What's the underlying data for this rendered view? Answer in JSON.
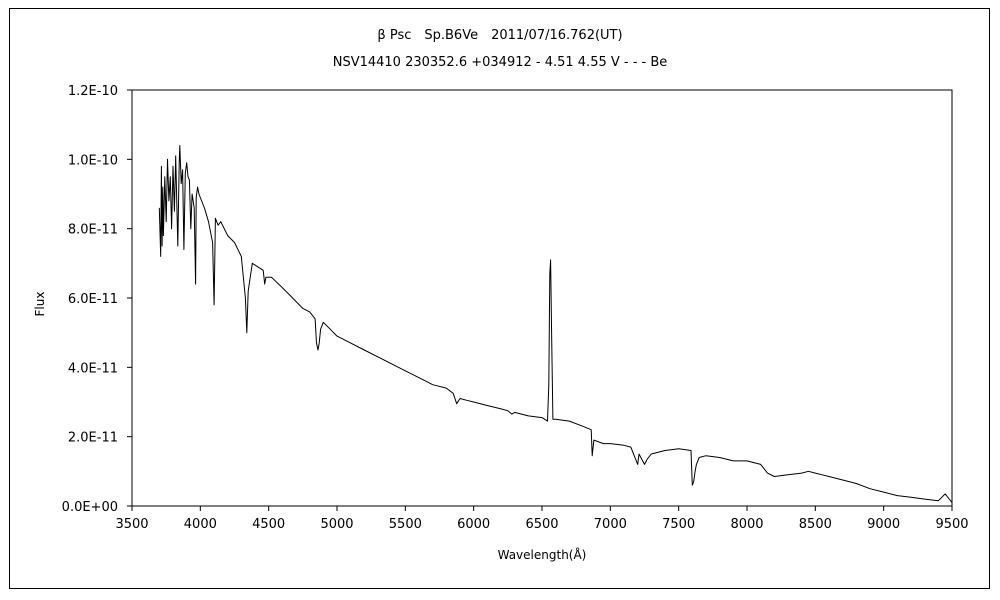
{
  "chart_data": {
    "type": "line",
    "title": "β Psc　Sp.B6Ve　2011/07/16.762(UT)",
    "subtitle": "NSV14410 230352.6 +034912 - 4.51 4.55 V - - - Be",
    "xlabel": "Wavelength(Å)",
    "ylabel": "Flux",
    "xlim": [
      3500,
      9500
    ],
    "ylim": [
      0,
      1.2e-10
    ],
    "xticks": [
      3500,
      4000,
      4500,
      5000,
      5500,
      6000,
      6500,
      7000,
      7500,
      8000,
      8500,
      9000,
      9500
    ],
    "yticks": [
      0,
      2e-11,
      4e-11,
      6e-11,
      8e-11,
      1e-10,
      1.2e-10
    ],
    "ytick_labels": [
      "0.0E+00",
      "2.0E-11",
      "4.0E-11",
      "6.0E-11",
      "8.0E-11",
      "1.0E-10",
      "1.2E-10"
    ],
    "grid": false,
    "legend": "none",
    "series": [
      {
        "color": "#000000",
        "x": [
          3700,
          3710,
          3715,
          3720,
          3725,
          3730,
          3740,
          3750,
          3760,
          3770,
          3780,
          3790,
          3800,
          3810,
          3820,
          3835,
          3845,
          3850,
          3860,
          3870,
          3880,
          3890,
          3900,
          3910,
          3920,
          3930,
          3940,
          3955,
          3965,
          3970,
          3980,
          3990,
          4000,
          4030,
          4060,
          4090,
          4101,
          4110,
          4130,
          4150,
          4200,
          4250,
          4300,
          4330,
          4340,
          4350,
          4380,
          4420,
          4460,
          4471,
          4480,
          4520,
          4600,
          4650,
          4700,
          4750,
          4800,
          4840,
          4850,
          4861,
          4870,
          4880,
          4900,
          4950,
          5000,
          5100,
          5200,
          5300,
          5400,
          5500,
          5600,
          5700,
          5800,
          5850,
          5876,
          5900,
          5950,
          6000,
          6100,
          6200,
          6250,
          6280,
          6300,
          6350,
          6400,
          6500,
          6540,
          6550,
          6557,
          6563,
          6570,
          6580,
          6600,
          6700,
          6800,
          6860,
          6867,
          6880,
          6950,
          7000,
          7100,
          7150,
          7200,
          7210,
          7250,
          7270,
          7300,
          7400,
          7500,
          7590,
          7600,
          7610,
          7620,
          7630,
          7650,
          7700,
          7800,
          7900,
          8000,
          8100,
          8150,
          8200,
          8300,
          8400,
          8450,
          8500,
          8550,
          8600,
          8700,
          8800,
          8900,
          9000,
          9100,
          9200,
          9300,
          9400,
          9450,
          9500
        ],
        "values": [
          8.6e-11,
          7.2e-11,
          9.8e-11,
          7.5e-11,
          9.2e-11,
          7.8e-11,
          9.5e-11,
          8.2e-11,
          1e-10,
          8.8e-11,
          9.5e-11,
          8e-11,
          9.8e-11,
          8.5e-11,
          1.01e-10,
          7.5e-11,
          9.9e-11,
          1.04e-10,
          9.3e-11,
          9.7e-11,
          7.4e-11,
          9.6e-11,
          9.9e-11,
          9.5e-11,
          9.4e-11,
          8e-11,
          9e-11,
          8.6e-11,
          6.4e-11,
          8.9e-11,
          9.2e-11,
          9e-11,
          8.9e-11,
          8.6e-11,
          8.2e-11,
          7.6e-11,
          5.8e-11,
          8.3e-11,
          8.1e-11,
          8.2e-11,
          7.8e-11,
          7.6e-11,
          7.2e-11,
          6e-11,
          5e-11,
          6.2e-11,
          7e-11,
          6.9e-11,
          6.8e-11,
          6.4e-11,
          6.6e-11,
          6.6e-11,
          6.3e-11,
          6.1e-11,
          5.9e-11,
          5.7e-11,
          5.6e-11,
          5.4e-11,
          4.7e-11,
          4.5e-11,
          4.7e-11,
          5.1e-11,
          5.3e-11,
          5.1e-11,
          4.9e-11,
          4.7e-11,
          4.5e-11,
          4.3e-11,
          4.1e-11,
          3.9e-11,
          3.7e-11,
          3.5e-11,
          3.4e-11,
          3.25e-11,
          2.95e-11,
          3.1e-11,
          3.05e-11,
          3e-11,
          2.9e-11,
          2.8e-11,
          2.75e-11,
          2.65e-11,
          2.7e-11,
          2.65e-11,
          2.6e-11,
          2.55e-11,
          2.45e-11,
          3.5e-11,
          6.7e-11,
          7.1e-11,
          5e-11,
          2.5e-11,
          2.5e-11,
          2.45e-11,
          2.3e-11,
          2.2e-11,
          1.45e-11,
          1.9e-11,
          1.8e-11,
          1.8e-11,
          1.75e-11,
          1.7e-11,
          1.2e-11,
          1.5e-11,
          1.2e-11,
          1.35e-11,
          1.5e-11,
          1.6e-11,
          1.65e-11,
          1.6e-11,
          6e-12,
          7e-12,
          1e-11,
          1.2e-11,
          1.4e-11,
          1.45e-11,
          1.4e-11,
          1.3e-11,
          1.3e-11,
          1.2e-11,
          9.5e-12,
          8.5e-12,
          9e-12,
          9.5e-12,
          1e-11,
          9.5e-12,
          9e-12,
          8.5e-12,
          7.5e-12,
          6.5e-12,
          5e-12,
          4e-12,
          3e-12,
          2.5e-12,
          2e-12,
          1.5e-12,
          3.5e-12,
          1e-12
        ]
      }
    ]
  }
}
